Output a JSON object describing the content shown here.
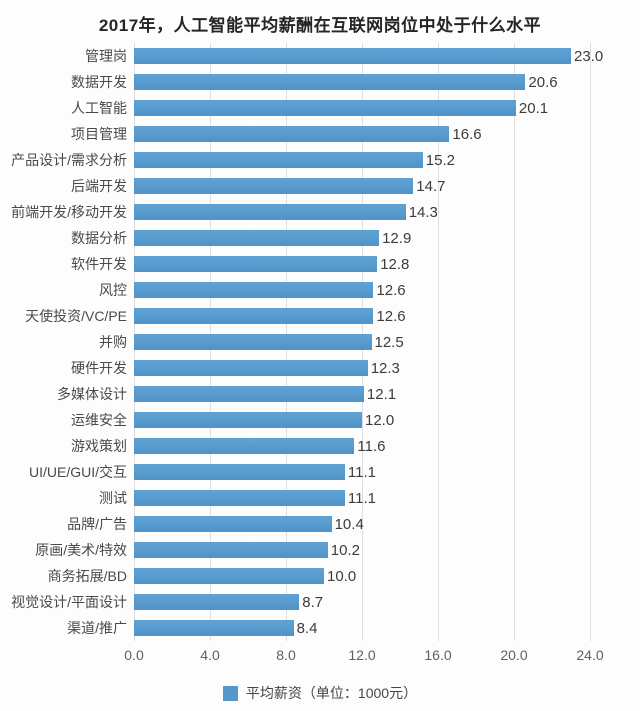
{
  "chart_data": {
    "type": "bar",
    "orientation": "horizontal",
    "title": "2017年，人工智能平均薪酬在互联网岗位中处于什么水平",
    "categories": [
      "管理岗",
      "数据开发",
      "人工智能",
      "项目管理",
      "产品设计/需求分析",
      "后端开发",
      "前端开发/移动开发",
      "数据分析",
      "软件开发",
      "风控",
      "天使投资/VC/PE",
      "并购",
      "硬件开发",
      "多媒体设计",
      "运维安全",
      "游戏策划",
      "UI/UE/GUI/交互",
      "测试",
      "品牌/广告",
      "原画/美术/特效",
      "商务拓展/BD",
      "视觉设计/平面设计",
      "渠道/推广"
    ],
    "values": [
      23.0,
      20.6,
      20.1,
      16.6,
      15.2,
      14.7,
      14.3,
      12.9,
      12.8,
      12.6,
      12.6,
      12.5,
      12.3,
      12.1,
      12.0,
      11.6,
      11.1,
      11.1,
      10.4,
      10.2,
      10.0,
      8.7,
      8.4
    ],
    "value_labels": [
      "23.0",
      "20.6",
      "20.1",
      "16.6",
      "15.2",
      "14.7",
      "14.3",
      "12.9",
      "12.8",
      "12.6",
      "12.6",
      "12.5",
      "12.3",
      "12.1",
      "12.0",
      "11.6",
      "11.1",
      "11.1",
      "10.4",
      "10.2",
      "10.0",
      "8.7",
      "8.4"
    ],
    "xlabel": "",
    "ylabel": "",
    "xlim": [
      0,
      24
    ],
    "xticks": [
      "0.0",
      "4.0",
      "8.0",
      "12.0",
      "16.0",
      "20.0",
      "24.0"
    ],
    "xtick_values": [
      0,
      4,
      8,
      12,
      16,
      20,
      24
    ],
    "grid": true,
    "legend": "平均薪资（单位：1000元）",
    "legend_position": "bottom-center",
    "bar_color": "#5596cb",
    "grid_color": "#dedede"
  }
}
